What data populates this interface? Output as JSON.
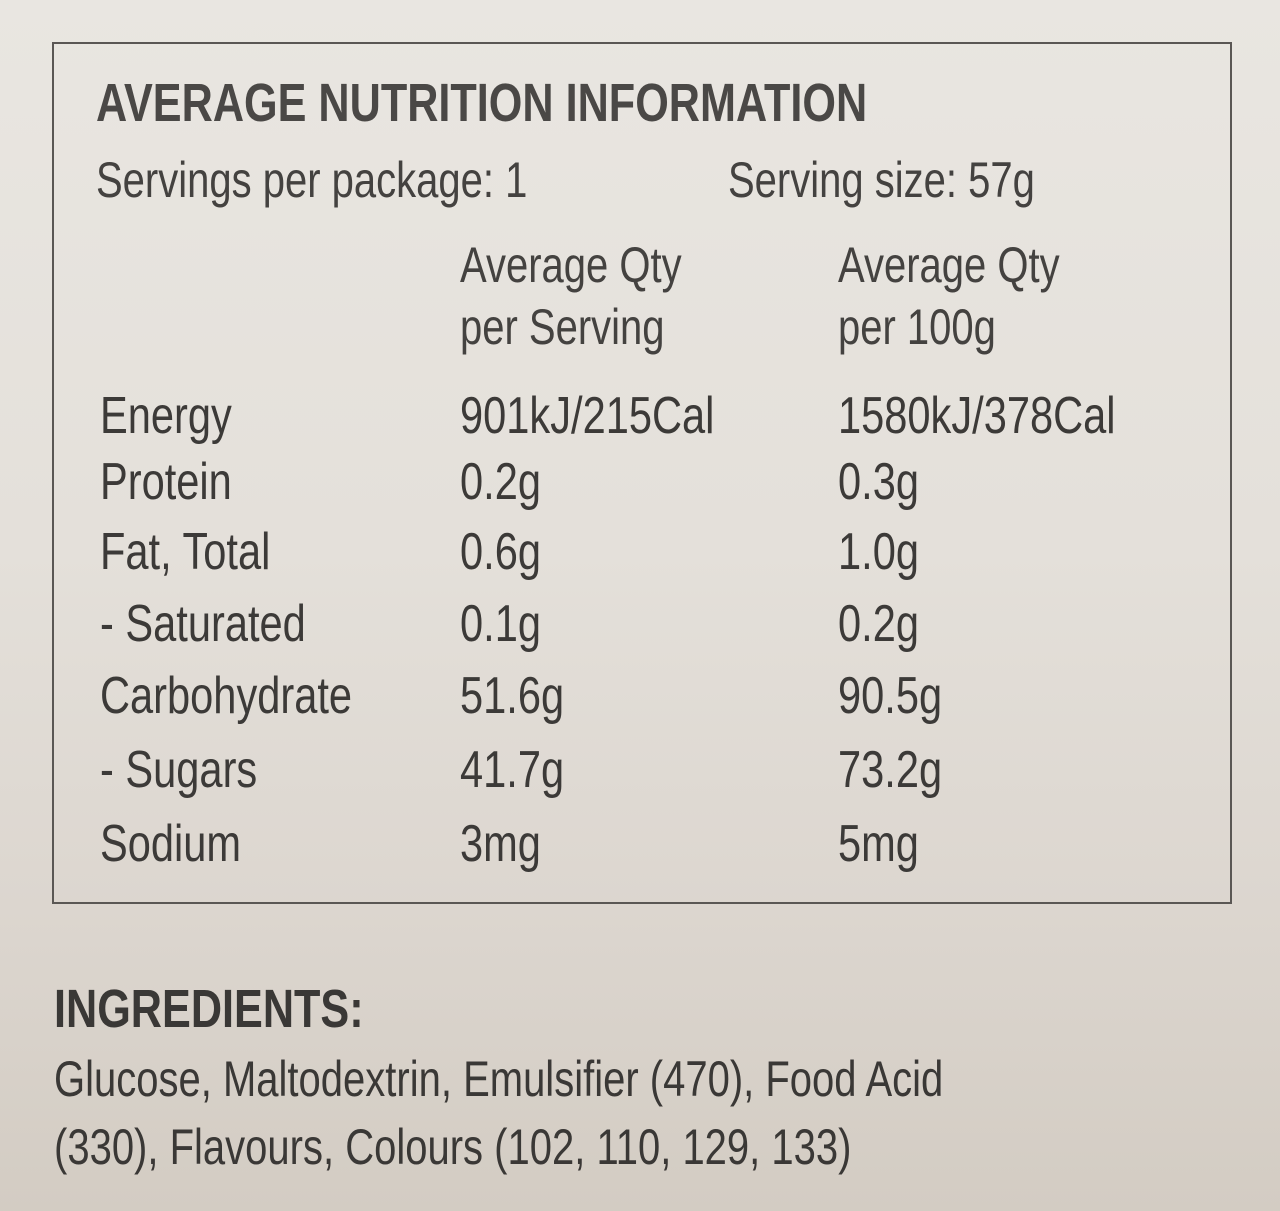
{
  "panel": {
    "title": "AVERAGE NUTRITION INFORMATION",
    "servings_per_package": "Servings per package: 1",
    "serving_size": "Serving size: 57g",
    "col_headers": [
      [
        "Average Qty",
        "per Serving"
      ],
      [
        "Average Qty",
        "per 100g"
      ]
    ],
    "rows": [
      {
        "label": "Energy",
        "per_serving": "901kJ/215Cal",
        "per_100g": "1580kJ/378Cal"
      },
      {
        "label": "Protein",
        "per_serving": "0.2g",
        "per_100g": "0.3g"
      },
      {
        "label": "Fat, Total",
        "per_serving": "0.6g",
        "per_100g": "1.0g"
      },
      {
        "label": "- Saturated",
        "per_serving": "0.1g",
        "per_100g": "0.2g"
      },
      {
        "label": "Carbohydrate",
        "per_serving": "51.6g",
        "per_100g": "90.5g"
      },
      {
        "label": "- Sugars",
        "per_serving": "41.7g",
        "per_100g": "73.2g"
      },
      {
        "label": "Sodium",
        "per_serving": "3mg",
        "per_100g": "5mg"
      }
    ]
  },
  "ingredients": {
    "heading": "INGREDIENTS:",
    "lines": [
      "Glucose, Maltodextrin, Emulsifier (470), Food Acid",
      "(330), Flavours, Colours (102, 110, 129, 133)"
    ]
  }
}
